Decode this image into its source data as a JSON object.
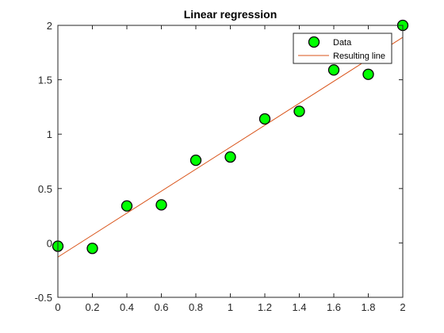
{
  "chart_data": {
    "type": "scatter",
    "title": "Linear regression",
    "xlabel": "",
    "ylabel": "",
    "xlim": [
      0,
      2
    ],
    "ylim": [
      -0.5,
      2
    ],
    "x_ticks": [
      0,
      0.2,
      0.4,
      0.6,
      0.8,
      1,
      1.2,
      1.4,
      1.6,
      1.8,
      2
    ],
    "x_tick_labels": [
      "0",
      "0.2",
      "0.4",
      "0.6",
      "0.8",
      "1",
      "1.2",
      "1.4",
      "1.6",
      "1.8",
      "2"
    ],
    "y_ticks": [
      -0.5,
      0,
      0.5,
      1,
      1.5,
      2
    ],
    "y_tick_labels": [
      "-0.5",
      "0",
      "0.5",
      "1",
      "1.5",
      "2"
    ],
    "grid": false,
    "legend_position": "top-right",
    "series": [
      {
        "name": "Data",
        "type": "scatter",
        "color": "#00ff00",
        "edge_color": "#000000",
        "x": [
          0,
          0.2,
          0.4,
          0.6,
          0.8,
          1.0,
          1.2,
          1.4,
          1.6,
          1.8,
          2.0
        ],
        "y": [
          -0.03,
          -0.05,
          0.34,
          0.35,
          0.76,
          0.79,
          1.14,
          1.21,
          1.59,
          1.55,
          2.0
        ]
      },
      {
        "name": "Resulting line",
        "type": "line",
        "color": "#d95319",
        "x": [
          0,
          2
        ],
        "y": [
          -0.13,
          1.89
        ]
      }
    ]
  }
}
